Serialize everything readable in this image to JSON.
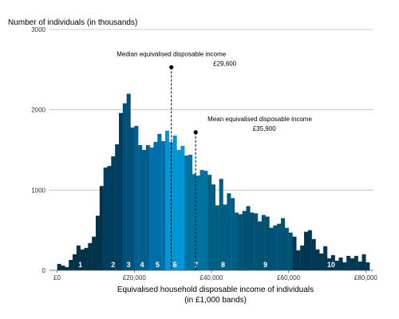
{
  "chart_data": {
    "type": "bar",
    "title": "",
    "ylabel": "Number of individuals (in thousands)",
    "xlabel": "Equivalised household disposable income of individuals",
    "xlabel_sub": "(in £1,000 bands)",
    "ylim": [
      0,
      3000
    ],
    "xlim": [
      -2,
      82
    ],
    "yticks": [
      {
        "value": 0,
        "label": "0"
      },
      {
        "value": 1000,
        "label": "1000"
      },
      {
        "value": 2000,
        "label": "2000"
      },
      {
        "value": 3000,
        "label": "3000"
      }
    ],
    "xticks": [
      {
        "value": 0,
        "label": "£0"
      },
      {
        "value": 20,
        "label": "£20,000"
      },
      {
        "value": 40,
        "label": "£40,000"
      },
      {
        "value": 60,
        "label": "£60,000"
      },
      {
        "value": 80,
        "label": "£80,000"
      }
    ],
    "grid": true,
    "bin_width": 1,
    "values": [
      80,
      60,
      40,
      130,
      200,
      310,
      260,
      280,
      340,
      420,
      680,
      1050,
      1280,
      1300,
      1420,
      1570,
      1960,
      2080,
      2200,
      1780,
      1800,
      1560,
      1500,
      1560,
      1530,
      1600,
      1700,
      1610,
      1740,
      1600,
      1680,
      1500,
      1550,
      1430,
      1440,
      1200,
      1180,
      1250,
      1240,
      1190,
      1070,
      810,
      1140,
      820,
      960,
      900,
      720,
      700,
      740,
      800,
      720,
      710,
      610,
      690,
      670,
      530,
      560,
      580,
      650,
      530,
      470,
      420,
      250,
      310,
      480,
      500,
      390,
      260,
      210,
      300,
      150,
      190,
      120,
      160,
      100,
      180,
      150,
      180,
      110,
      200,
      100
    ],
    "deciles": [
      {
        "label": "1",
        "from": 0,
        "to": 11,
        "color": "#00324a"
      },
      {
        "label": "2",
        "from": 12,
        "to": 16,
        "color": "#003e5f"
      },
      {
        "label": "3",
        "from": 17,
        "to": 19,
        "color": "#00507a"
      },
      {
        "label": "4",
        "from": 20,
        "to": 23,
        "color": "#005f8f"
      },
      {
        "label": "5",
        "from": 24,
        "to": 27,
        "color": "#006fa8"
      },
      {
        "label": "6",
        "from": 28,
        "to": 32,
        "color": "#0096d6"
      },
      {
        "label": "7",
        "from": 33,
        "to": 38,
        "color": "#00729f"
      },
      {
        "label": "8",
        "from": 39,
        "to": 46,
        "color": "#005e85"
      },
      {
        "label": "9",
        "from": 47,
        "to": 60,
        "color": "#005274"
      },
      {
        "label": "10",
        "from": 61,
        "to": 80,
        "color": "#003854"
      }
    ],
    "annotations": [
      {
        "name": "median",
        "label": "Median equivalised disposable income",
        "value_label": "£29,600",
        "x": 29.6,
        "y": 2530
      },
      {
        "name": "mean",
        "label": "Mean equivalised disposable income",
        "value_label": "£35,900",
        "x": 35.9,
        "y": 1720
      }
    ]
  }
}
